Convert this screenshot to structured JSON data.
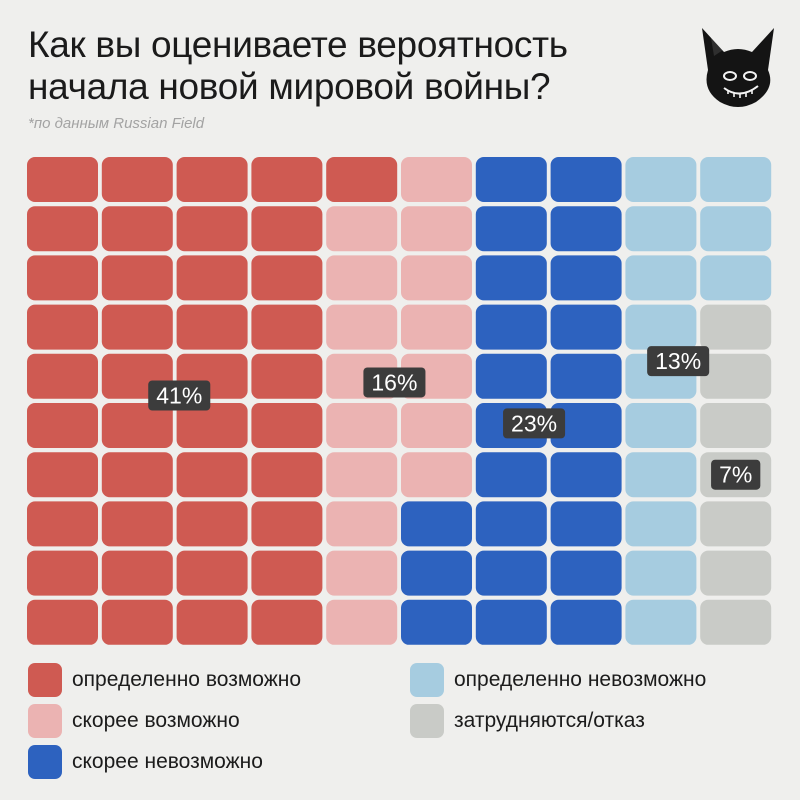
{
  "header": {
    "title_line1": "Как вы оцениваете вероятность",
    "title_line2": "начала новой мировой войны?",
    "source": "*по данным Russian Field"
  },
  "logo": {
    "icon": "dark-creature-mascot-icon"
  },
  "chart_data": {
    "type": "waffle",
    "grid": {
      "columns": 10,
      "rows": 10
    },
    "categories": [
      {
        "name": "определенно возможно",
        "value": 41,
        "label": "41%",
        "color": "#cf5a52"
      },
      {
        "name": "скорее возможно",
        "value": 16,
        "label": "16%",
        "color": "#ebb3b2"
      },
      {
        "name": "скорее невозможно",
        "value": 23,
        "label": "23%",
        "color": "#2d62bf"
      },
      {
        "name": "определенно невозможно",
        "value": 13,
        "label": "13%",
        "color": "#a6cce0"
      },
      {
        "name": "затрудняются/отказ",
        "value": 7,
        "label": "7%",
        "color": "#c9cbc7"
      }
    ],
    "column_fill_order": "top-to-bottom, left-to-right"
  },
  "legend": {
    "items": [
      {
        "label": "определенно возможно",
        "color": "#cf5a52"
      },
      {
        "label": "скорее возможно",
        "color": "#ebb3b2"
      },
      {
        "label": "скорее невозможно",
        "color": "#2d62bf"
      },
      {
        "label": "определенно невозможно",
        "color": "#a6cce0"
      },
      {
        "label": "затрудняются/отказ",
        "color": "#c9cbc7"
      }
    ]
  }
}
